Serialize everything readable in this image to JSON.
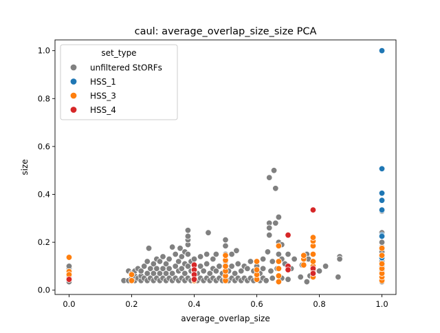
{
  "chart_data": {
    "type": "scatter",
    "title": "caul: average_overlap_size_size PCA",
    "xlabel": "average_overlap_size",
    "ylabel": "size",
    "xlim": [
      -0.045,
      1.045
    ],
    "ylim": [
      -0.018,
      1.045
    ],
    "x_ticks": [
      "0.0",
      "0.2",
      "0.4",
      "0.6",
      "0.8",
      "1.0"
    ],
    "y_ticks": [
      "0.0",
      "0.2",
      "0.4",
      "0.6",
      "0.8",
      "1.0"
    ],
    "grid": false,
    "legend_placement": "top-left",
    "legend": {
      "title": "set_type",
      "entries": [
        {
          "label": "unfiltered StORFs",
          "color": "#808080"
        },
        {
          "label": "HSS_1",
          "color": "#1f77b4"
        },
        {
          "label": "HSS_3",
          "color": "#ff7f0e"
        },
        {
          "label": "HSS_4",
          "color": "#d62728"
        }
      ]
    },
    "series": [
      {
        "name": "unfiltered StORFs",
        "color": "#808080",
        "points": [
          [
            0.0,
            0.035
          ],
          [
            0.0,
            0.045
          ],
          [
            0.0,
            0.055
          ],
          [
            0.0,
            0.065
          ],
          [
            0.0,
            0.08
          ],
          [
            0.0,
            0.09
          ],
          [
            0.0,
            0.1
          ],
          [
            0.175,
            0.04
          ],
          [
            0.19,
            0.04
          ],
          [
            0.19,
            0.08
          ],
          [
            0.2,
            0.05
          ],
          [
            0.2,
            0.07
          ],
          [
            0.21,
            0.04
          ],
          [
            0.21,
            0.06
          ],
          [
            0.21,
            0.08
          ],
          [
            0.22,
            0.05
          ],
          [
            0.22,
            0.09
          ],
          [
            0.23,
            0.04
          ],
          [
            0.23,
            0.06
          ],
          [
            0.23,
            0.08
          ],
          [
            0.24,
            0.05
          ],
          [
            0.24,
            0.1
          ],
          [
            0.25,
            0.04
          ],
          [
            0.25,
            0.07
          ],
          [
            0.25,
            0.12
          ],
          [
            0.255,
            0.175
          ],
          [
            0.26,
            0.05
          ],
          [
            0.26,
            0.09
          ],
          [
            0.27,
            0.04
          ],
          [
            0.27,
            0.07
          ],
          [
            0.27,
            0.11
          ],
          [
            0.28,
            0.05
          ],
          [
            0.28,
            0.09
          ],
          [
            0.28,
            0.13
          ],
          [
            0.29,
            0.04
          ],
          [
            0.29,
            0.07
          ],
          [
            0.29,
            0.12
          ],
          [
            0.3,
            0.05
          ],
          [
            0.3,
            0.09
          ],
          [
            0.3,
            0.14
          ],
          [
            0.31,
            0.04
          ],
          [
            0.31,
            0.07
          ],
          [
            0.31,
            0.11
          ],
          [
            0.32,
            0.05
          ],
          [
            0.32,
            0.09
          ],
          [
            0.32,
            0.13
          ],
          [
            0.33,
            0.04
          ],
          [
            0.33,
            0.07
          ],
          [
            0.33,
            0.18
          ],
          [
            0.34,
            0.05
          ],
          [
            0.34,
            0.1
          ],
          [
            0.34,
            0.15
          ],
          [
            0.35,
            0.04
          ],
          [
            0.35,
            0.08
          ],
          [
            0.35,
            0.12
          ],
          [
            0.355,
            0.175
          ],
          [
            0.36,
            0.05
          ],
          [
            0.36,
            0.09
          ],
          [
            0.36,
            0.14
          ],
          [
            0.37,
            0.04
          ],
          [
            0.37,
            0.07
          ],
          [
            0.37,
            0.11
          ],
          [
            0.37,
            0.16
          ],
          [
            0.38,
            0.05
          ],
          [
            0.38,
            0.1
          ],
          [
            0.38,
            0.15
          ],
          [
            0.38,
            0.19
          ],
          [
            0.38,
            0.21
          ],
          [
            0.38,
            0.225
          ],
          [
            0.38,
            0.25
          ],
          [
            0.39,
            0.04
          ],
          [
            0.39,
            0.08
          ],
          [
            0.39,
            0.12
          ],
          [
            0.4,
            0.05
          ],
          [
            0.4,
            0.09
          ],
          [
            0.4,
            0.13
          ],
          [
            0.41,
            0.04
          ],
          [
            0.41,
            0.07
          ],
          [
            0.42,
            0.05
          ],
          [
            0.42,
            0.1
          ],
          [
            0.42,
            0.14
          ],
          [
            0.43,
            0.04
          ],
          [
            0.43,
            0.08
          ],
          [
            0.44,
            0.05
          ],
          [
            0.44,
            0.11
          ],
          [
            0.44,
            0.15
          ],
          [
            0.445,
            0.24
          ],
          [
            0.45,
            0.04
          ],
          [
            0.45,
            0.07
          ],
          [
            0.46,
            0.05
          ],
          [
            0.46,
            0.09
          ],
          [
            0.46,
            0.13
          ],
          [
            0.47,
            0.04
          ],
          [
            0.47,
            0.08
          ],
          [
            0.47,
            0.15
          ],
          [
            0.48,
            0.05
          ],
          [
            0.48,
            0.1
          ],
          [
            0.49,
            0.04
          ],
          [
            0.49,
            0.07
          ],
          [
            0.5,
            0.05
          ],
          [
            0.5,
            0.12
          ],
          [
            0.5,
            0.15
          ],
          [
            0.5,
            0.185
          ],
          [
            0.5,
            0.21
          ],
          [
            0.51,
            0.04
          ],
          [
            0.51,
            0.08
          ],
          [
            0.52,
            0.05
          ],
          [
            0.52,
            0.1
          ],
          [
            0.52,
            0.15
          ],
          [
            0.53,
            0.04
          ],
          [
            0.53,
            0.07
          ],
          [
            0.535,
            0.165
          ],
          [
            0.54,
            0.05
          ],
          [
            0.54,
            0.11
          ],
          [
            0.55,
            0.04
          ],
          [
            0.55,
            0.08
          ],
          [
            0.56,
            0.05
          ],
          [
            0.56,
            0.1
          ],
          [
            0.57,
            0.04
          ],
          [
            0.57,
            0.09
          ],
          [
            0.58,
            0.05
          ],
          [
            0.58,
            0.12
          ],
          [
            0.59,
            0.04
          ],
          [
            0.59,
            0.08
          ],
          [
            0.6,
            0.05
          ],
          [
            0.6,
            0.1
          ],
          [
            0.61,
            0.04
          ],
          [
            0.61,
            0.07
          ],
          [
            0.62,
            0.05
          ],
          [
            0.62,
            0.09
          ],
          [
            0.62,
            0.13
          ],
          [
            0.63,
            0.04
          ],
          [
            0.635,
            0.16
          ],
          [
            0.64,
            0.47
          ],
          [
            0.64,
            0.28
          ],
          [
            0.64,
            0.26
          ],
          [
            0.64,
            0.23
          ],
          [
            0.645,
            0.08
          ],
          [
            0.65,
            0.05
          ],
          [
            0.65,
            0.12
          ],
          [
            0.655,
            0.5
          ],
          [
            0.66,
            0.425
          ],
          [
            0.66,
            0.28
          ],
          [
            0.665,
            0.09
          ],
          [
            0.67,
            0.305
          ],
          [
            0.67,
            0.2
          ],
          [
            0.67,
            0.15
          ],
          [
            0.68,
            0.19
          ],
          [
            0.68,
            0.13
          ],
          [
            0.68,
            0.05
          ],
          [
            0.69,
            0.11
          ],
          [
            0.7,
            0.045
          ],
          [
            0.7,
            0.15
          ],
          [
            0.71,
            0.09
          ],
          [
            0.72,
            0.13
          ],
          [
            0.74,
            0.055
          ],
          [
            0.745,
            0.105
          ],
          [
            0.76,
            0.035
          ],
          [
            0.76,
            0.15
          ],
          [
            0.765,
            0.13
          ],
          [
            0.77,
            0.06
          ],
          [
            0.8,
            0.08
          ],
          [
            0.82,
            0.1
          ],
          [
            0.86,
            0.055
          ],
          [
            0.865,
            0.14
          ],
          [
            0.865,
            0.13
          ],
          [
            1.0,
            0.035
          ],
          [
            1.0,
            0.05
          ],
          [
            1.0,
            0.065
          ],
          [
            1.0,
            0.08
          ],
          [
            1.0,
            0.1
          ],
          [
            1.0,
            0.12
          ],
          [
            1.0,
            0.16
          ],
          [
            1.0,
            0.18
          ],
          [
            1.0,
            0.2
          ],
          [
            1.0,
            0.24
          ],
          [
            1.0,
            0.33
          ]
        ]
      },
      {
        "name": "HSS_1",
        "color": "#1f77b4",
        "points": [
          [
            1.0,
            1.0
          ],
          [
            1.0,
            0.507
          ],
          [
            1.0,
            0.405
          ],
          [
            1.0,
            0.375
          ],
          [
            1.0,
            0.335
          ],
          [
            1.0,
            0.23
          ],
          [
            1.0,
            0.225
          ],
          [
            1.0,
            0.135
          ]
        ]
      },
      {
        "name": "HSS_3",
        "color": "#ff7f0e",
        "points": [
          [
            0.0,
            0.137
          ],
          [
            0.0,
            0.078
          ],
          [
            0.0,
            0.065
          ],
          [
            0.2,
            0.04
          ],
          [
            0.2,
            0.065
          ],
          [
            0.4,
            0.04
          ],
          [
            0.4,
            0.06
          ],
          [
            0.4,
            0.08
          ],
          [
            0.5,
            0.04
          ],
          [
            0.5,
            0.06
          ],
          [
            0.5,
            0.08
          ],
          [
            0.5,
            0.1
          ],
          [
            0.5,
            0.125
          ],
          [
            0.5,
            0.145
          ],
          [
            0.6,
            0.045
          ],
          [
            0.6,
            0.065
          ],
          [
            0.6,
            0.085
          ],
          [
            0.6,
            0.12
          ],
          [
            0.67,
            0.035
          ],
          [
            0.67,
            0.06
          ],
          [
            0.67,
            0.09
          ],
          [
            0.67,
            0.12
          ],
          [
            0.67,
            0.185
          ],
          [
            0.75,
            0.105
          ],
          [
            0.75,
            0.13
          ],
          [
            0.75,
            0.145
          ],
          [
            0.78,
            0.055
          ],
          [
            0.78,
            0.08
          ],
          [
            0.78,
            0.1
          ],
          [
            0.78,
            0.12
          ],
          [
            0.78,
            0.15
          ],
          [
            0.78,
            0.185
          ],
          [
            0.78,
            0.205
          ],
          [
            0.78,
            0.22
          ],
          [
            1.0,
            0.04
          ],
          [
            1.0,
            0.055
          ],
          [
            1.0,
            0.07
          ],
          [
            1.0,
            0.09
          ],
          [
            1.0,
            0.11
          ],
          [
            1.0,
            0.145
          ],
          [
            1.0,
            0.175
          ]
        ]
      },
      {
        "name": "HSS_4",
        "color": "#d62728",
        "points": [
          [
            0.0,
            0.045
          ],
          [
            0.4,
            0.105
          ],
          [
            0.4,
            0.085
          ],
          [
            0.4,
            0.065
          ],
          [
            0.4,
            0.045
          ],
          [
            0.7,
            0.23
          ],
          [
            0.7,
            0.1
          ],
          [
            0.7,
            0.085
          ],
          [
            0.78,
            0.335
          ],
          [
            0.78,
            0.09
          ],
          [
            0.78,
            0.07
          ]
        ]
      }
    ]
  }
}
